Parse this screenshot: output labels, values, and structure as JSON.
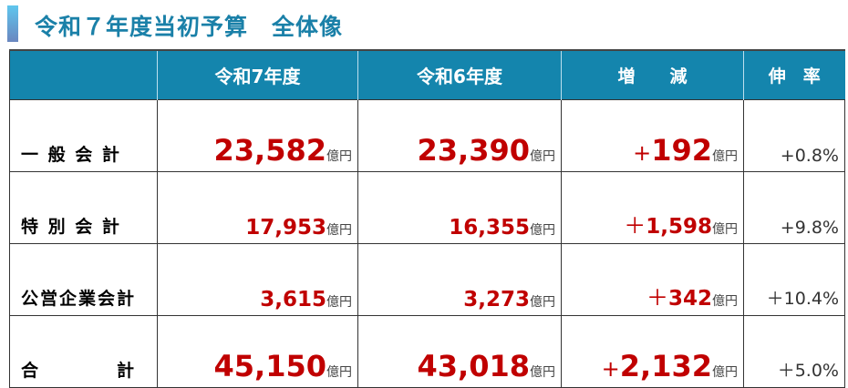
{
  "title": "令和７年度当初予算　全体像",
  "colors": {
    "header_bg": "#1485ad",
    "title": "#1a80a8",
    "value": "#c00000"
  },
  "header": [
    "",
    "令和7年度",
    "令和6年度",
    "増　　減",
    "伸　率"
  ],
  "unit": "億円",
  "rows": [
    {
      "label": "一 般 会 計",
      "r7": "23,582",
      "r6": "23,390",
      "sign": "+",
      "diff": "192",
      "rate": "+0.8%",
      "emphasis": true
    },
    {
      "label": "特 別 会 計",
      "r7": "17,953",
      "r6": "16,355",
      "sign": "＋",
      "diff": "1,598",
      "rate": "+9.8%",
      "emphasis": false
    },
    {
      "label": "公営企業会計",
      "r7": "3,615",
      "r6": "3,273",
      "sign": "＋",
      "diff": "342",
      "rate": "＋10.4%",
      "emphasis": false
    },
    {
      "label": "合　　　　計",
      "r7": "45,150",
      "r6": "43,018",
      "sign": "+",
      "diff": "2,132",
      "rate": "＋5.0%",
      "emphasis": true
    }
  ]
}
